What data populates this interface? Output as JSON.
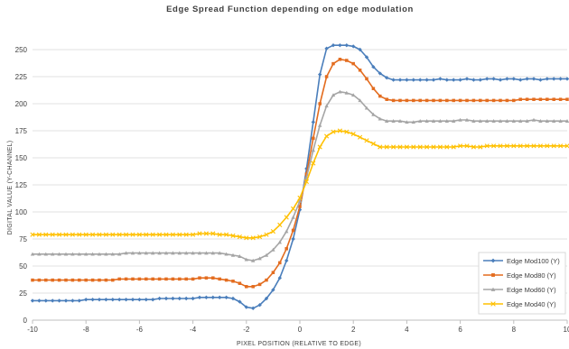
{
  "chart_data": {
    "type": "line",
    "title": "Edge Spread Function depending on edge modulation",
    "xlabel": "PIXEL POSITION (RELATIVE TO EDGE)",
    "ylabel": "DIGITAL VALUE (Y-CHANNEL)",
    "xlim": [
      -10,
      10
    ],
    "ylim": [
      0,
      250
    ],
    "xticks": [
      "-10",
      "-8",
      "-6",
      "-4",
      "-2",
      "0",
      "2",
      "4",
      "6",
      "8",
      "10"
    ],
    "yticks": [
      "0",
      "25",
      "50",
      "75",
      "100",
      "125",
      "150",
      "175",
      "200",
      "225",
      "250"
    ],
    "grid": true,
    "legend_position": "bottom-right",
    "x": [
      -10,
      -9.75,
      -9.5,
      -9.25,
      -9,
      -8.75,
      -8.5,
      -8.25,
      -8,
      -7.75,
      -7.5,
      -7.25,
      -7,
      -6.75,
      -6.5,
      -6.25,
      -6,
      -5.75,
      -5.5,
      -5.25,
      -5,
      -4.75,
      -4.5,
      -4.25,
      -4,
      -3.75,
      -3.5,
      -3.25,
      -3,
      -2.75,
      -2.5,
      -2.25,
      -2,
      -1.75,
      -1.5,
      -1.25,
      -1,
      -0.75,
      -0.5,
      -0.25,
      0,
      0.25,
      0.5,
      0.75,
      1,
      1.25,
      1.5,
      1.75,
      2,
      2.25,
      2.5,
      2.75,
      3,
      3.25,
      3.5,
      3.75,
      4,
      4.25,
      4.5,
      4.75,
      5,
      5.25,
      5.5,
      5.75,
      6,
      6.25,
      6.5,
      6.75,
      7,
      7.25,
      7.5,
      7.75,
      8,
      8.25,
      8.5,
      8.75,
      9,
      9.25,
      9.5,
      9.75,
      10
    ],
    "series": [
      {
        "name": "Edge Mod100 (Y)",
        "color": "#4a7ebb",
        "marker": "diamond",
        "values": [
          18,
          18,
          18,
          18,
          18,
          18,
          18,
          18,
          19,
          19,
          19,
          19,
          19,
          19,
          19,
          19,
          19,
          19,
          19,
          20,
          20,
          20,
          20,
          20,
          20,
          21,
          21,
          21,
          21,
          21,
          20,
          17,
          12,
          11,
          14,
          20,
          28,
          39,
          55,
          75,
          102,
          140,
          183,
          227,
          251,
          254,
          254,
          254,
          253,
          250,
          243,
          234,
          228,
          224,
          222,
          222,
          222,
          222,
          222,
          222,
          222,
          223,
          222,
          222,
          222,
          223,
          222,
          222,
          223,
          223,
          222,
          223,
          223,
          222,
          223,
          223,
          222,
          223,
          223,
          223,
          223
        ]
      },
      {
        "name": "Edge Mod80 (Y)",
        "color": "#e36c1f",
        "marker": "square",
        "values": [
          37,
          37,
          37,
          37,
          37,
          37,
          37,
          37,
          37,
          37,
          37,
          37,
          37,
          38,
          38,
          38,
          38,
          38,
          38,
          38,
          38,
          38,
          38,
          38,
          38,
          39,
          39,
          39,
          38,
          37,
          36,
          34,
          31,
          31,
          33,
          37,
          44,
          53,
          66,
          83,
          105,
          135,
          168,
          200,
          225,
          237,
          241,
          240,
          237,
          231,
          223,
          214,
          207,
          204,
          203,
          203,
          203,
          203,
          203,
          203,
          203,
          203,
          203,
          203,
          203,
          203,
          203,
          203,
          203,
          203,
          203,
          203,
          203,
          204,
          204,
          204,
          204,
          204,
          204,
          204,
          204
        ]
      },
      {
        "name": "Edge Mod60 (Y)",
        "color": "#a5a5a5",
        "marker": "triangle",
        "values": [
          61,
          61,
          61,
          61,
          61,
          61,
          61,
          61,
          61,
          61,
          61,
          61,
          61,
          61,
          62,
          62,
          62,
          62,
          62,
          62,
          62,
          62,
          62,
          62,
          62,
          62,
          62,
          62,
          62,
          61,
          60,
          59,
          56,
          55,
          57,
          60,
          65,
          72,
          82,
          95,
          110,
          132,
          157,
          180,
          198,
          208,
          211,
          210,
          208,
          203,
          196,
          190,
          186,
          184,
          184,
          184,
          183,
          183,
          184,
          184,
          184,
          184,
          184,
          184,
          185,
          185,
          184,
          184,
          184,
          184,
          184,
          184,
          184,
          184,
          184,
          185,
          184,
          184,
          184,
          184,
          184
        ]
      },
      {
        "name": "Edge Mod40 (Y)",
        "color": "#ffc000",
        "marker": "x",
        "values": [
          79,
          79,
          79,
          79,
          79,
          79,
          79,
          79,
          79,
          79,
          79,
          79,
          79,
          79,
          79,
          79,
          79,
          79,
          79,
          79,
          79,
          79,
          79,
          79,
          79,
          80,
          80,
          80,
          79,
          79,
          78,
          77,
          76,
          76,
          77,
          79,
          82,
          88,
          95,
          103,
          113,
          128,
          145,
          160,
          170,
          174,
          175,
          174,
          172,
          169,
          166,
          163,
          160,
          160,
          160,
          160,
          160,
          160,
          160,
          160,
          160,
          160,
          160,
          160,
          161,
          161,
          160,
          160,
          161,
          161,
          161,
          161,
          161,
          161,
          161,
          161,
          161,
          161,
          161,
          161,
          161
        ]
      }
    ]
  }
}
